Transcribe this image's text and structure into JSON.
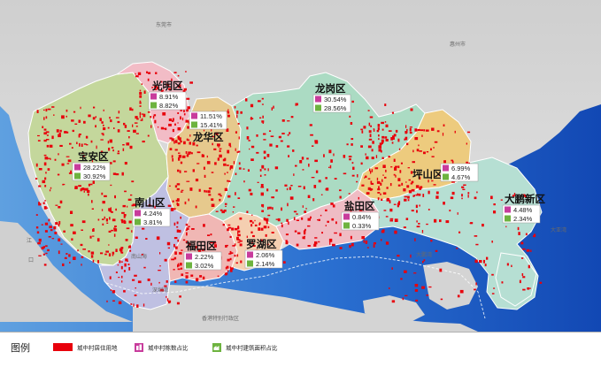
{
  "background_labels": {
    "dongguan": "东莞市",
    "huizhou": "惠州市",
    "jiang": "江",
    "kou": "口",
    "hongkong": "香港特别行政区",
    "shenzhen_bay": "深圳湾",
    "nanshan_sea": "南山海",
    "dapeng_bay": "大鹏湾",
    "daya_bay": "大亚湾"
  },
  "districts": [
    {
      "id": "guangming",
      "name": "光明区",
      "building_count_pct": "8.91%",
      "floor_area_pct": "8.82%"
    },
    {
      "id": "longhua",
      "name": "龙华区",
      "building_count_pct": "11.51%",
      "floor_area_pct": "15.41%"
    },
    {
      "id": "longgang",
      "name": "龙岗区",
      "building_count_pct": "30.54%",
      "floor_area_pct": "28.56%"
    },
    {
      "id": "baoan",
      "name": "宝安区",
      "building_count_pct": "28.22%",
      "floor_area_pct": "30.92%"
    },
    {
      "id": "pingshan",
      "name": "坪山区",
      "building_count_pct": "6.99%",
      "floor_area_pct": "4.67%"
    },
    {
      "id": "nanshan",
      "name": "南山区",
      "building_count_pct": "4.24%",
      "floor_area_pct": "3.81%"
    },
    {
      "id": "yantian",
      "name": "盐田区",
      "building_count_pct": "0.84%",
      "floor_area_pct": "0.33%"
    },
    {
      "id": "dapeng",
      "name": "大鹏新区",
      "building_count_pct": "4.48%",
      "floor_area_pct": "2.34%"
    },
    {
      "id": "futian",
      "name": "福田区",
      "building_count_pct": "2.22%",
      "floor_area_pct": "3.02%"
    },
    {
      "id": "luohu",
      "name": "罗湖区",
      "building_count_pct": "2.06%",
      "floor_area_pct": "2.14%"
    }
  ],
  "legend": {
    "title": "图例",
    "items": [
      {
        "label": "城中村居住用地",
        "color": "#e8000b",
        "icon": "red-swatch"
      },
      {
        "label": "城中村栋数占比",
        "color": "#c83c9c",
        "icon": "building-count-icon"
      },
      {
        "label": "城中村建筑面积占比",
        "color": "#6db33f",
        "icon": "floor-area-icon"
      }
    ]
  },
  "colors": {
    "sea": "#1f63c7",
    "terrain": "#d6d6d6",
    "village_land": "#e8000b",
    "guangming": "#f2bcc6",
    "longhua": "#e6c98d",
    "longgang": "#abdbc3",
    "baoan": "#c4d79c",
    "pingshan": "#edcb7e",
    "nanshan": "#bfc0e2",
    "yantian": "#efbcc4",
    "dapeng": "#b6dfd3",
    "futian": "#f0b7b4",
    "luohu": "#f5cfb1"
  }
}
